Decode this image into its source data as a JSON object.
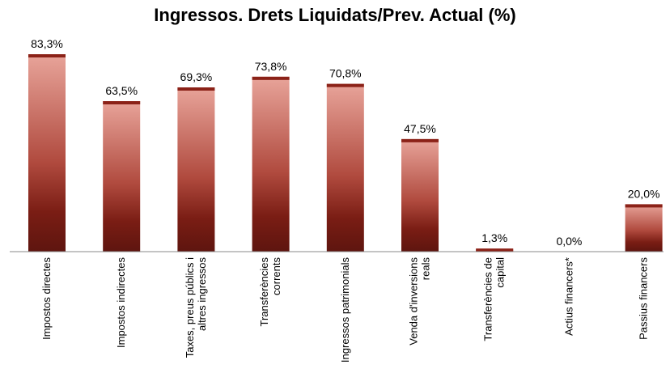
{
  "chart_data": {
    "type": "bar",
    "title": "Ingressos. Drets Liquidats/Prev. Actual (%)",
    "categories": [
      [
        "Impostos directes"
      ],
      [
        "Impostos indirectes"
      ],
      [
        "Taxes, preus públics i",
        "altres ingressos"
      ],
      [
        "Transferències",
        "corrents"
      ],
      [
        "Ingressos patrimonials"
      ],
      [
        "Venda d'inversions",
        "reals"
      ],
      [
        "Transferències de",
        "capital"
      ],
      [
        "Actius financers*"
      ],
      [
        "Passius financers"
      ]
    ],
    "values": [
      83.3,
      63.5,
      69.3,
      73.8,
      70.8,
      47.5,
      1.3,
      0.0,
      20.0
    ],
    "data_labels": [
      "83,3%",
      "63,5%",
      "69,3%",
      "73,8%",
      "70,8%",
      "47,5%",
      "1,3%",
      "0,0%",
      "20,0%"
    ],
    "ylim": [
      0,
      100
    ],
    "xlabel": "",
    "ylabel": "",
    "grid": false,
    "colors": {
      "bar_top": "#e8a49a",
      "bar_mid": "#b04a3e",
      "bar_dark": "#7a1d14",
      "bar_base": "#5e150f",
      "cap": "#8b2218",
      "axis": "#888888"
    }
  }
}
